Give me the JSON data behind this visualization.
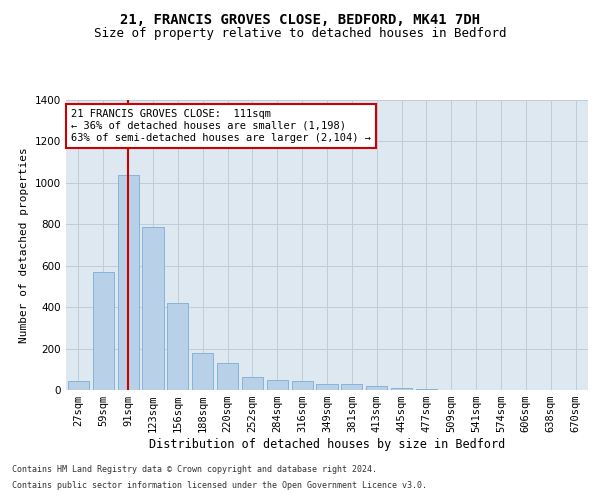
{
  "title1": "21, FRANCIS GROVES CLOSE, BEDFORD, MK41 7DH",
  "title2": "Size of property relative to detached houses in Bedford",
  "xlabel": "Distribution of detached houses by size in Bedford",
  "ylabel": "Number of detached properties",
  "categories": [
    "27sqm",
    "59sqm",
    "91sqm",
    "123sqm",
    "156sqm",
    "188sqm",
    "220sqm",
    "252sqm",
    "284sqm",
    "316sqm",
    "349sqm",
    "381sqm",
    "413sqm",
    "445sqm",
    "477sqm",
    "509sqm",
    "541sqm",
    "574sqm",
    "606sqm",
    "638sqm",
    "670sqm"
  ],
  "values": [
    45,
    570,
    1040,
    785,
    420,
    180,
    128,
    65,
    50,
    45,
    30,
    27,
    20,
    10,
    5,
    0,
    0,
    0,
    0,
    0,
    0
  ],
  "bar_color": "#b8d0e8",
  "bar_edgecolor": "#7aaed4",
  "highlight_index": 2,
  "highlight_line_color": "#cc0000",
  "ylim": [
    0,
    1400
  ],
  "yticks": [
    0,
    200,
    400,
    600,
    800,
    1000,
    1200,
    1400
  ],
  "annotation_title": "21 FRANCIS GROVES CLOSE:  111sqm",
  "annotation_line1": "← 36% of detached houses are smaller (1,198)",
  "annotation_line2": "63% of semi-detached houses are larger (2,104) →",
  "annotation_box_color": "#cc0000",
  "footer1": "Contains HM Land Registry data © Crown copyright and database right 2024.",
  "footer2": "Contains public sector information licensed under the Open Government Licence v3.0.",
  "bg_color": "#ffffff",
  "plot_bg_color": "#dde8f0",
  "grid_color": "#c0ccd8",
  "title1_fontsize": 10,
  "title2_fontsize": 9,
  "xlabel_fontsize": 8.5,
  "ylabel_fontsize": 8,
  "tick_fontsize": 7.5,
  "annotation_fontsize": 7.5,
  "footer_fontsize": 6
}
